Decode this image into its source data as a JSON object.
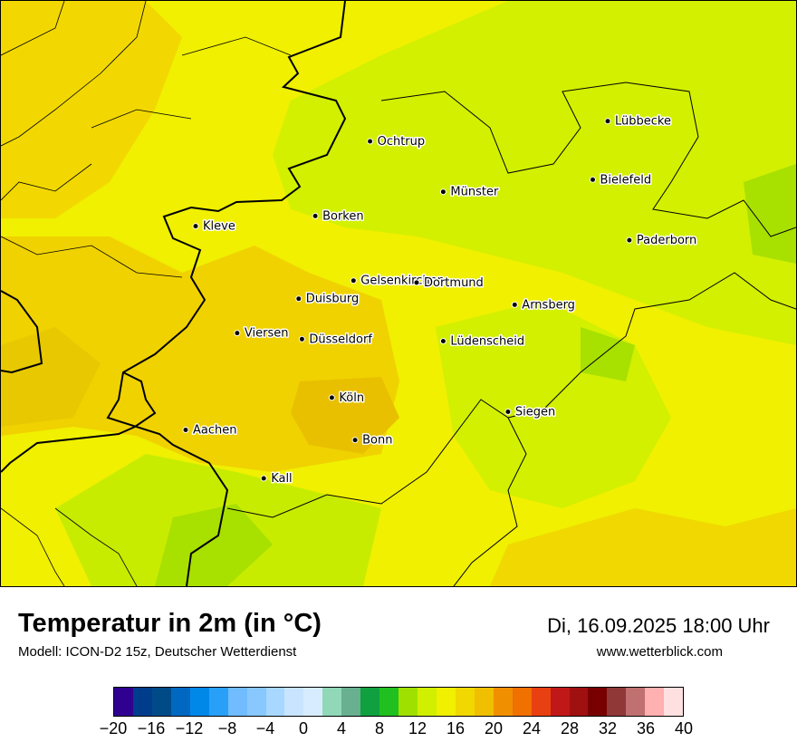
{
  "title": "Temperatur in 2m (in °C)",
  "model": "Modell: ICON-D2 15z, Deutscher Wetterdienst",
  "datetime": "Di, 16.09.2025 18:00 Uhr",
  "website": "www.wetterblick.com",
  "map": {
    "colors": {
      "band_16_18": "#f0f000",
      "band_14_16": "#d2f000",
      "band_18_20": "#f0d200",
      "band_20_22": "#e8c000",
      "band_12_14": "#a8e000"
    },
    "cities": [
      {
        "name": "Ochtrup",
        "lon": 7.19,
        "lat": 52.21
      },
      {
        "name": "Lübbecke",
        "lon": 8.62,
        "lat": 52.31
      },
      {
        "name": "Bielefeld",
        "lon": 8.53,
        "lat": 52.02
      },
      {
        "name": "Münster",
        "lon": 7.63,
        "lat": 51.96
      },
      {
        "name": "Borken",
        "lon": 6.86,
        "lat": 51.84
      },
      {
        "name": "Kleve",
        "lon": 6.14,
        "lat": 51.79
      },
      {
        "name": "Paderborn",
        "lon": 8.75,
        "lat": 51.72
      },
      {
        "name": "Gelsenkirchen",
        "lon": 7.09,
        "lat": 51.52
      },
      {
        "name": "Dortmund",
        "lon": 7.47,
        "lat": 51.51
      },
      {
        "name": "Duisburg",
        "lon": 6.76,
        "lat": 51.43
      },
      {
        "name": "Arnsberg",
        "lon": 8.06,
        "lat": 51.4
      },
      {
        "name": "Viersen",
        "lon": 6.39,
        "lat": 51.26
      },
      {
        "name": "Düsseldorf",
        "lon": 6.78,
        "lat": 51.23
      },
      {
        "name": "Lüdenscheid",
        "lon": 7.63,
        "lat": 51.22
      },
      {
        "name": "Köln",
        "lon": 6.96,
        "lat": 50.94
      },
      {
        "name": "Siegen",
        "lon": 8.02,
        "lat": 50.87
      },
      {
        "name": "Aachen",
        "lon": 6.08,
        "lat": 50.78
      },
      {
        "name": "Bonn",
        "lon": 7.1,
        "lat": 50.73
      },
      {
        "name": "Kall",
        "lon": 6.55,
        "lat": 50.54
      }
    ]
  },
  "colorbar": {
    "unit": "°C",
    "tick_labels": [
      "−20",
      "−16",
      "−12",
      "−8",
      "−4",
      "0",
      "4",
      "8",
      "12",
      "16",
      "20",
      "24",
      "28",
      "32",
      "36",
      "40"
    ],
    "colors": [
      "#300090",
      "#003c8c",
      "#004a88",
      "#0068c0",
      "#0088e8",
      "#28a0f8",
      "#70bcff",
      "#88c8ff",
      "#a8d8ff",
      "#c8e4ff",
      "#d8ecff",
      "#90d8b8",
      "#68b090",
      "#10a040",
      "#20c020",
      "#a0e000",
      "#d0f000",
      "#f0f000",
      "#f0d800",
      "#f0c000",
      "#f09000",
      "#f07000",
      "#e84010",
      "#c01818",
      "#a01010",
      "#780000",
      "#903838",
      "#c07070",
      "#ffb0b0",
      "#ffe0e0"
    ]
  }
}
